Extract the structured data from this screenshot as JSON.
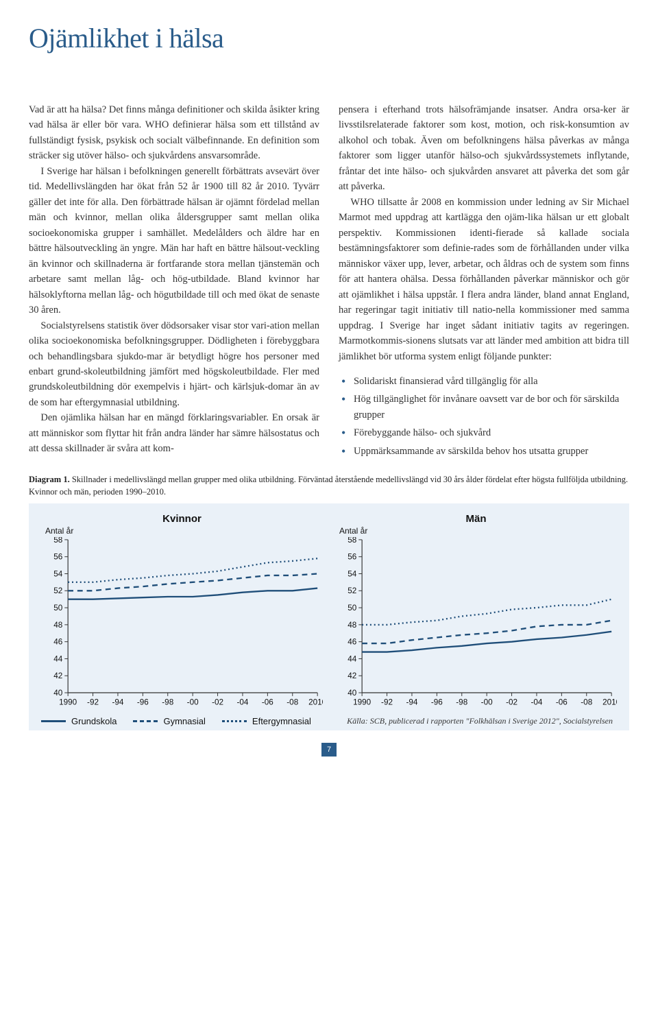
{
  "title": "Ojämlikhet i hälsa",
  "colors": {
    "heading": "#2a5c8a",
    "chart_bg": "#eaf1f8",
    "axis": "#333333",
    "series": "#1f4e79"
  },
  "col_left": {
    "p1": "Vad är att ha hälsa? Det finns många definitioner och skilda åsikter kring vad hälsa är eller bör vara. WHO definierar hälsa som ett tillstånd av fullständigt fysisk, psykisk och socialt välbefinnande. En definition som sträcker sig utöver hälso- och sjukvårdens ansvarsområde.",
    "p2": "I Sverige har hälsan i befolkningen generellt förbättrats avsevärt över tid. Medellivslängden har ökat från 52 år 1900 till 82 år 2010. Tyvärr gäller det inte för alla. Den förbättrade hälsan är ojämnt fördelad mellan män och kvinnor, mellan olika åldersgrupper samt mellan olika socioekonomiska grupper i samhället. Medelålders och äldre har en bättre hälsoutveckling än yngre. Män har haft en bättre hälsout-veckling än kvinnor och skillnaderna är fortfarande stora mellan tjänstemän och arbetare samt mellan låg- och hög-utbildade. Bland kvinnor har hälsoklyftorna mellan låg- och högutbildade till och med ökat de senaste 30 åren.",
    "p3": "Socialstyrelsens statistik över dödsorsaker visar stor vari-ation mellan olika socioekonomiska befolkningsgrupper. Dödligheten i förebyggbara och behandlingsbara sjukdo-mar är betydligt högre hos personer med enbart grund-skoleutbildning jämfört med högskoleutbildade. Fler med grundskoleutbildning dör exempelvis i hjärt- och kärlsjuk-domar än av de som har eftergymnasial utbildning.",
    "p4": "Den ojämlika hälsan har en mängd förklaringsvariabler. En orsak är att människor som flyttar hit från andra länder har sämre hälsostatus och att dessa skillnader är svåra att kom-"
  },
  "col_right": {
    "p1": "pensera i efterhand trots hälsofrämjande insatser. Andra orsa-ker är livsstilsrelaterade faktorer som kost, motion, och risk-konsumtion av alkohol och tobak. Även om befolkningens hälsa påverkas av många faktorer som ligger utanför hälso-och sjukvårdssystemets inflytande, fråntar det inte hälso- och sjukvården ansvaret att påverka det som går att påverka.",
    "p2": "WHO tillsatte år 2008 en kommission under ledning av Sir Michael Marmot med uppdrag att kartlägga den ojäm-lika hälsan ur ett globalt perspektiv. Kommissionen identi-fierade så kallade sociala bestämningsfaktorer som definie-rades som de förhållanden under vilka människor växer upp, lever, arbetar, och åldras och de system som finns för att hantera ohälsa. Dessa förhållanden påverkar människor och gör att ojämlikhet i hälsa uppstår. I flera andra länder, bland annat England, har regeringar tagit initiativ till natio-nella kommissioner med samma uppdrag. I Sverige har inget sådant initiativ tagits av regeringen. Marmotkommis-sionens slutsats var att länder med ambition att bidra till jämlikhet bör utforma system enligt följande punkter:",
    "bullets": [
      "Solidariskt finansierad vård tillgänglig för alla",
      "Hög tillgänglighet för invånare oavsett var de bor och för särskilda grupper",
      "Förebyggande hälso- och sjukvård",
      "Uppmärksammande av särskilda behov hos utsatta grupper"
    ]
  },
  "diagram_caption_label": "Diagram 1.",
  "diagram_caption": " Skillnader i medellivslängd mellan grupper med olika utbildning. Förväntad återstående medellivslängd vid 30 års ålder fördelat efter högsta fullföljda utbildning. Kvinnor och män, perioden 1990–2010.",
  "charts": {
    "y_label": "Antal år",
    "ylim": [
      40,
      58
    ],
    "ytick_step": 2,
    "x_years": [
      1990,
      1992,
      1994,
      1996,
      1998,
      2000,
      2002,
      2004,
      2006,
      2008,
      2010
    ],
    "x_labels": [
      "1990",
      "-92",
      "-94",
      "-96",
      "-98",
      "-00",
      "-02",
      "-04",
      "-06",
      "-08",
      "2010"
    ],
    "panels": [
      {
        "title": "Kvinnor",
        "series": [
          {
            "name": "Grundskola",
            "dash": "solid",
            "y": [
              51.0,
              51.0,
              51.1,
              51.2,
              51.3,
              51.3,
              51.5,
              51.8,
              52.0,
              52.0,
              52.3
            ]
          },
          {
            "name": "Gymnasial",
            "dash": "dashed",
            "y": [
              52.0,
              52.0,
              52.3,
              52.5,
              52.8,
              53.0,
              53.2,
              53.5,
              53.8,
              53.8,
              54.0
            ]
          },
          {
            "name": "Eftergymnasial",
            "dash": "dotted",
            "y": [
              53.0,
              53.0,
              53.3,
              53.5,
              53.8,
              54.0,
              54.3,
              54.8,
              55.3,
              55.5,
              55.8
            ]
          }
        ]
      },
      {
        "title": "Män",
        "series": [
          {
            "name": "Grundskola",
            "dash": "solid",
            "y": [
              44.8,
              44.8,
              45.0,
              45.3,
              45.5,
              45.8,
              46.0,
              46.3,
              46.5,
              46.8,
              47.2
            ]
          },
          {
            "name": "Gymnasial",
            "dash": "dashed",
            "y": [
              45.8,
              45.8,
              46.2,
              46.5,
              46.8,
              47.0,
              47.3,
              47.8,
              48.0,
              48.0,
              48.5
            ]
          },
          {
            "name": "Eftergymnasial",
            "dash": "dotted",
            "y": [
              48.0,
              48.0,
              48.3,
              48.5,
              49.0,
              49.3,
              49.8,
              50.0,
              50.3,
              50.3,
              51.0
            ]
          }
        ]
      }
    ],
    "line_color": "#1f4e79",
    "line_width": 2.4,
    "axis_color": "#333333",
    "tick_fontsize": 12
  },
  "legend": {
    "items": [
      {
        "label": "Grundskola",
        "dash": "solid"
      },
      {
        "label": "Gymnasial",
        "dash": "dashed"
      },
      {
        "label": "Eftergymnasial",
        "dash": "dotted"
      }
    ]
  },
  "source": "Källa: SCB, publicerad i rapporten \"Folkhälsan i Sverige 2012\", Socialstyrelsen",
  "page_number": "7"
}
